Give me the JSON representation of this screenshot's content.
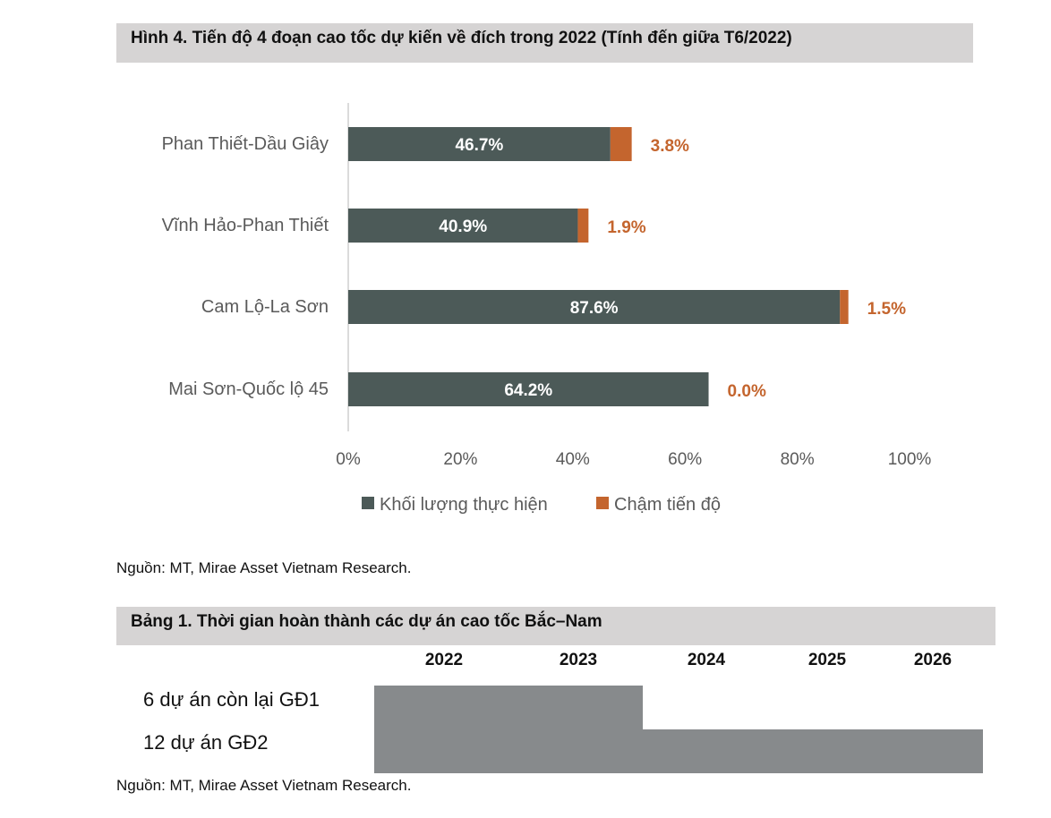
{
  "figure": {
    "title": "Hình 4. Tiến độ 4 đoạn cao tốc dự kiến về đích trong 2022 (Tính đến giữa T6/2022)",
    "source": "Nguồn: MT, Mirae Asset Vietnam Research."
  },
  "chart_data": {
    "type": "bar",
    "orientation": "horizontal",
    "stacked": true,
    "categories": [
      "Phan Thiết-Dầu Giây",
      "Vĩnh Hảo-Phan Thiết",
      "Cam Lộ-La Sơn",
      "Mai Sơn-Quốc lộ 45"
    ],
    "series": [
      {
        "name": "Khối lượng thực hiện",
        "values": [
          46.7,
          40.9,
          87.6,
          64.2
        ],
        "labels": [
          "46.7%",
          "40.9%",
          "87.6%",
          "64.2%"
        ],
        "color": "#4c5a58"
      },
      {
        "name": "Chậm tiến độ",
        "values": [
          3.8,
          1.9,
          1.5,
          0.0
        ],
        "labels": [
          "3.8%",
          "1.9%",
          "1.5%",
          "0.0%"
        ],
        "color": "#c4652e"
      }
    ],
    "xlim": [
      0,
      100
    ],
    "xticks": [
      "0%",
      "20%",
      "40%",
      "60%",
      "80%",
      "100%"
    ],
    "legend": "bottom",
    "grid": false
  },
  "table": {
    "title": "Bảng 1. Thời gian hoàn thành các dự án cao tốc Bắc–Nam",
    "years": [
      "2022",
      "2023",
      "2024",
      "2025",
      "2026"
    ],
    "rows": [
      {
        "label": "6 dự án còn lại GĐ1",
        "start": 2022,
        "end": 2023
      },
      {
        "label": "12 dự án GĐ2",
        "start": 2022,
        "end": 2026
      }
    ],
    "bar_color": "#878a8c",
    "source": "Nguồn: MT, Mirae Asset Vietnam Research."
  }
}
